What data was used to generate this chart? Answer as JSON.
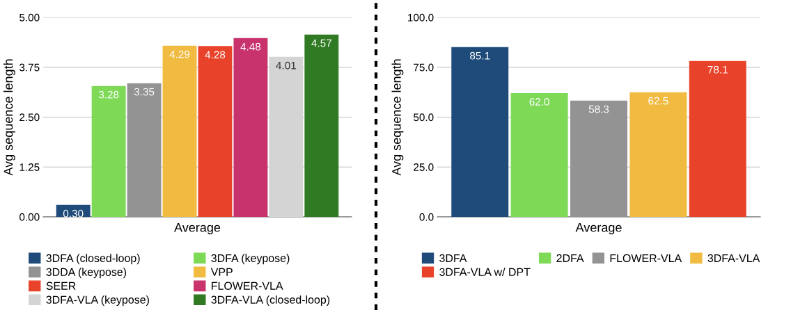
{
  "chart_data": [
    {
      "type": "bar",
      "ylabel": "Avg sequence length",
      "categories": [
        "Average"
      ],
      "ylim": [
        0,
        5
      ],
      "yticks": [
        {
          "value": 0,
          "label": "0.00"
        },
        {
          "value": 1.25,
          "label": "1.25"
        },
        {
          "value": 2.5,
          "label": "2.50"
        },
        {
          "value": 3.75,
          "label": "3.75"
        },
        {
          "value": 5,
          "label": "5.00"
        }
      ],
      "grid": "y",
      "legend": "bottom",
      "series": [
        {
          "name": "3DFA (closed-loop)",
          "color": "#1f4b7a",
          "values": [
            0.3
          ],
          "value_labels": [
            "0.30"
          ]
        },
        {
          "name": "3DFA (keypose)",
          "color": "#7ed957",
          "values": [
            3.28
          ],
          "value_labels": [
            "3.28"
          ]
        },
        {
          "name": "3DDA (keypose)",
          "color": "#939393",
          "values": [
            3.35
          ],
          "value_labels": [
            "3.35"
          ]
        },
        {
          "name": "VPP",
          "color": "#f0bb40",
          "values": [
            4.29
          ],
          "value_labels": [
            "4.29"
          ]
        },
        {
          "name": "SEER",
          "color": "#e8432a",
          "values": [
            4.28
          ],
          "value_labels": [
            "4.28"
          ]
        },
        {
          "name": "FLOWER-VLA",
          "color": "#c8336e",
          "values": [
            4.48
          ],
          "value_labels": [
            "4.48"
          ]
        },
        {
          "name": "3DFA-VLA (keypose)",
          "color": "#d4d4d4",
          "values": [
            4.01
          ],
          "value_labels": [
            "4.01"
          ]
        },
        {
          "name": "3DFA-VLA (closed-loop)",
          "color": "#2f7a22",
          "values": [
            4.57
          ],
          "value_labels": [
            "4.57"
          ]
        }
      ]
    },
    {
      "type": "bar",
      "ylabel": "Avg sequence length",
      "categories": [
        "Average"
      ],
      "ylim": [
        0,
        100
      ],
      "yticks": [
        {
          "value": 0,
          "label": "0.0"
        },
        {
          "value": 25,
          "label": "25.0"
        },
        {
          "value": 50,
          "label": "50.0"
        },
        {
          "value": 75,
          "label": "75.0"
        },
        {
          "value": 100,
          "label": "100.0"
        }
      ],
      "grid": "y",
      "legend": "bottom",
      "series": [
        {
          "name": "3DFA",
          "color": "#1f4b7a",
          "values": [
            85.1
          ],
          "value_labels": [
            "85.1"
          ]
        },
        {
          "name": "2DFA",
          "color": "#7ed957",
          "values": [
            62.0
          ],
          "value_labels": [
            "62.0"
          ]
        },
        {
          "name": "FLOWER-VLA",
          "color": "#939393",
          "values": [
            58.3
          ],
          "value_labels": [
            "58.3"
          ]
        },
        {
          "name": "3DFA-VLA",
          "color": "#f0bb40",
          "values": [
            62.5
          ],
          "value_labels": [
            "62.5"
          ]
        },
        {
          "name": "3DFA-VLA w/ DPT",
          "color": "#e8432a",
          "values": [
            78.1
          ],
          "value_labels": [
            "78.1"
          ]
        }
      ]
    }
  ]
}
